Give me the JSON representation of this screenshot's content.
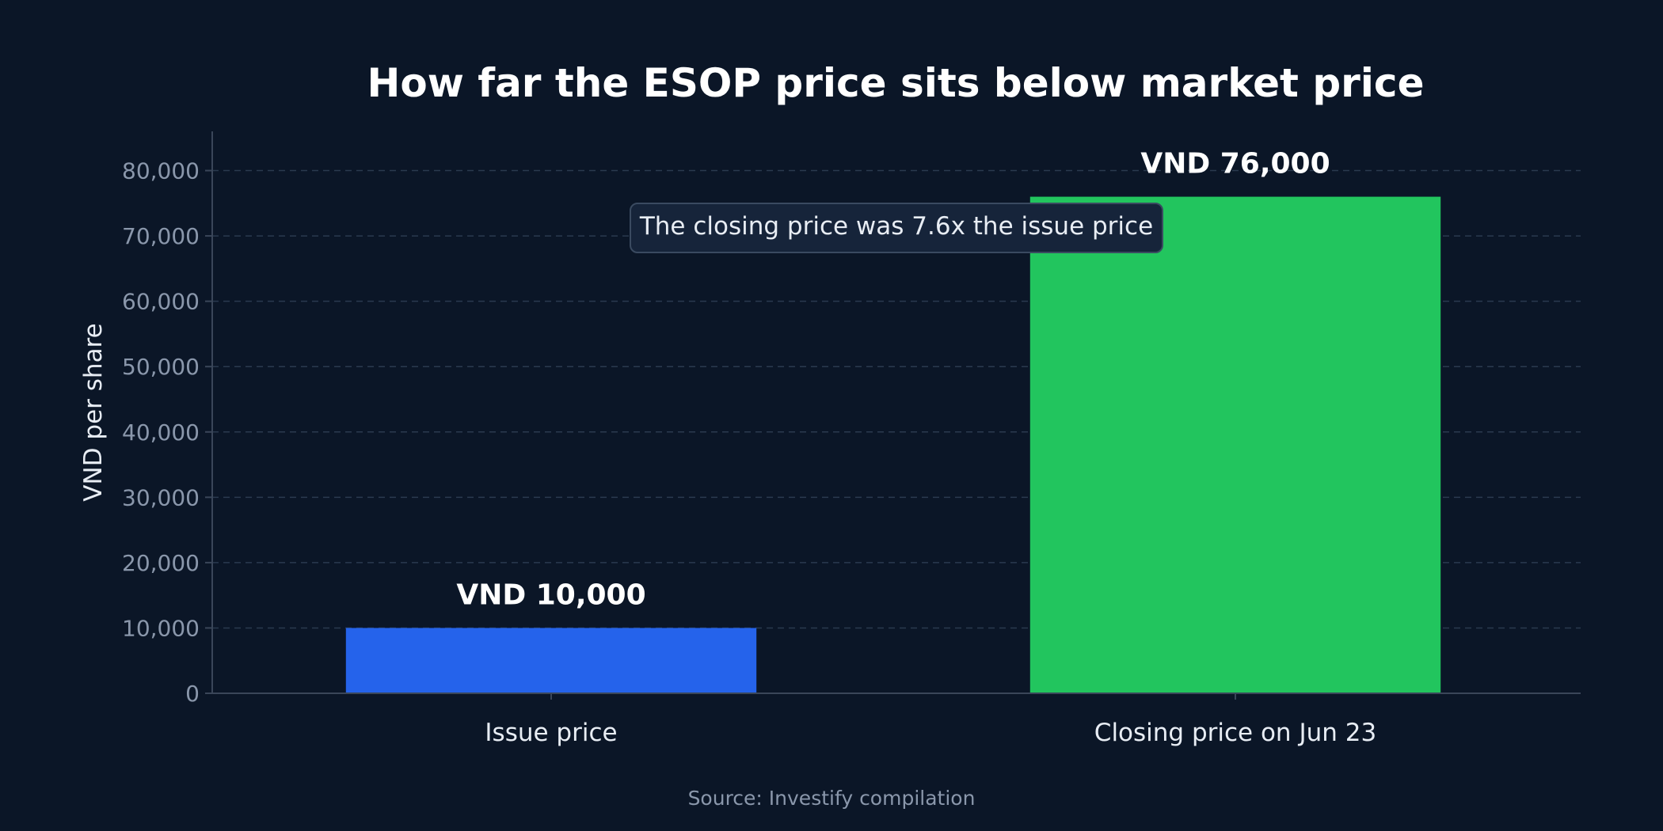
{
  "chart_data": {
    "type": "bar",
    "title": "How far the ESOP price sits below market price",
    "ylabel": "VND per share",
    "xlabel": "",
    "categories": [
      "Issue price",
      "Closing price on Jun 23"
    ],
    "values": [
      10000,
      76000
    ],
    "bar_colors": [
      "#2563eb",
      "#22c55e"
    ],
    "data_labels": [
      "VND 10,000",
      "VND 76,000"
    ],
    "ylim": [
      0,
      86000
    ],
    "yticks": [
      0,
      10000,
      20000,
      30000,
      40000,
      50000,
      60000,
      70000,
      80000
    ],
    "ytick_labels": [
      "0",
      "10,000",
      "20,000",
      "30,000",
      "40,000",
      "50,000",
      "60,000",
      "70,000",
      "80,000"
    ],
    "grid": true,
    "annotation": "The closing price was 7.6x the issue price",
    "source": "Source: Investify compilation"
  }
}
